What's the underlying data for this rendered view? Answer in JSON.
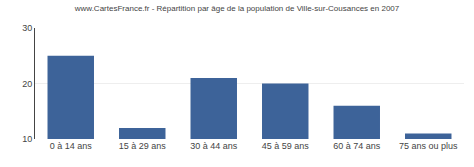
{
  "chart_data": {
    "type": "bar",
    "title": "www.CartesFrance.fr - Répartition par âge de la population de Ville-sur-Cousances en 2007",
    "categories": [
      "0 à 14 ans",
      "15 à 29 ans",
      "30 à 44 ans",
      "45 à 59 ans",
      "60 à 74 ans",
      "75 ans ou plus"
    ],
    "values": [
      25,
      12,
      21,
      20,
      16,
      11
    ],
    "color": "#3d6399",
    "ylim": [
      10,
      30
    ],
    "yticks": [
      10,
      20,
      30
    ],
    "grid": true
  }
}
